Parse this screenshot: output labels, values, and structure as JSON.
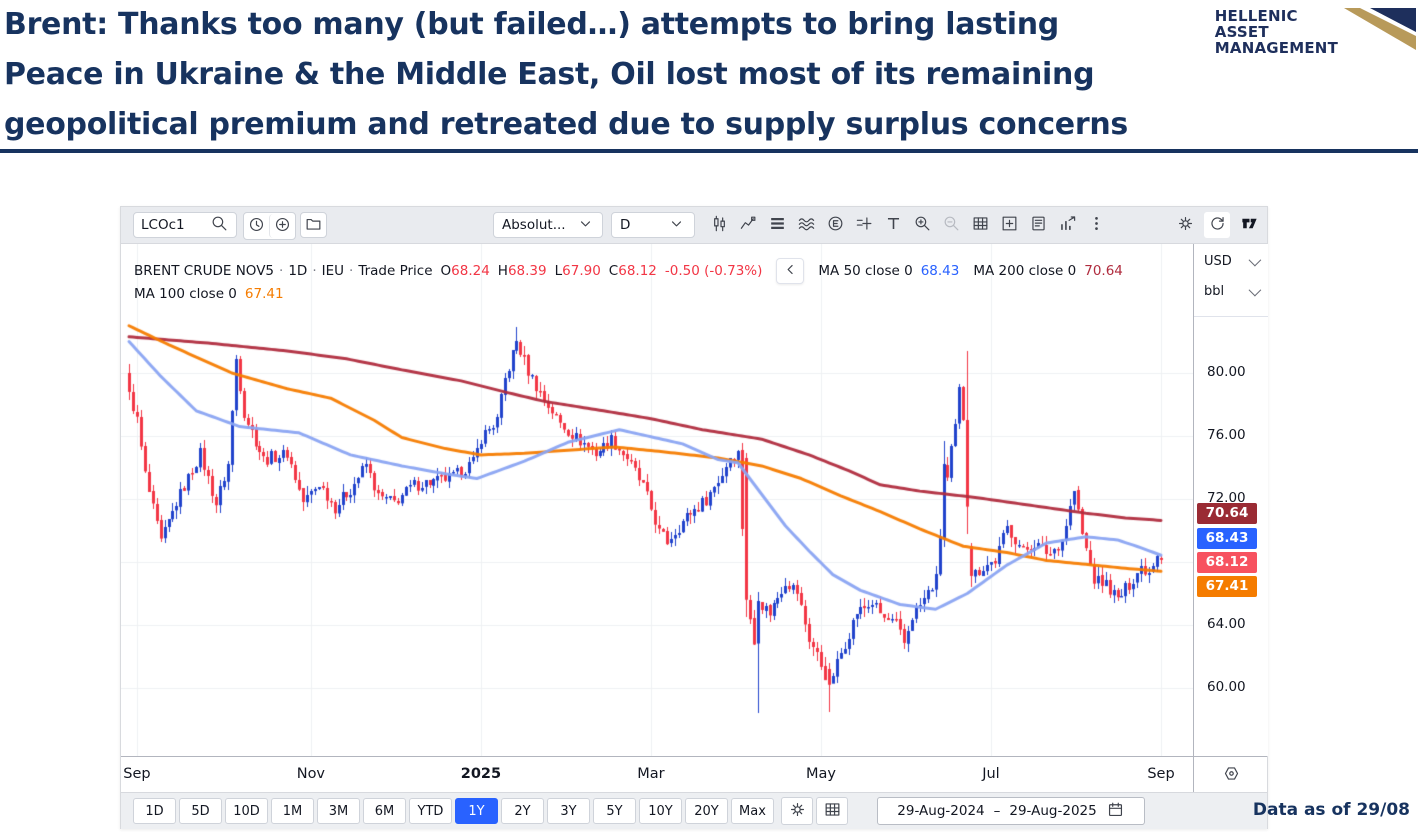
{
  "slide": {
    "title_lines": [
      "Brent: Thanks too many (but failed…) attempts to bring lasting",
      "Peace in Ukraine & the Middle East, Oil lost most of its remaining",
      "geopolitical premium and retreated due to supply surplus concerns"
    ],
    "footer_note": "Data as of 29/08",
    "accent_color": "#17335f",
    "logo": {
      "lines": [
        "HELLENIC",
        "ASSET",
        "MANAGEMENT"
      ],
      "gold": "#b89a5a",
      "navy": "#1e2f5c"
    }
  },
  "tv": {
    "toolbar": {
      "symbol": "LCOc1",
      "style_dropdown": "Absolut...",
      "interval_dropdown": "D",
      "icon_strip": [
        "candles-icon",
        "indicators-icon",
        "rows-icon",
        "waves-icon",
        "circle-e-icon",
        "alert-plus-icon",
        "text-icon",
        "zoom-in-icon",
        "zoom-out-icon",
        "grid-icon",
        "add-panel-icon",
        "news-icon",
        "chart-arrow-icon",
        "dots-icon"
      ],
      "right_icons": [
        "gear-icon",
        "reset-icon",
        "tv-logo-icon"
      ]
    },
    "legend": {
      "symbol_title": "BRENT CRUDE NOV5",
      "sep": "·",
      "interval": "1D",
      "exchange": "IEU",
      "series_type": "Trade Price",
      "o_label": "O",
      "o": "68.24",
      "h_label": "H",
      "h": "68.39",
      "l_label": "L",
      "l": "67.90",
      "c_label": "C",
      "c": "68.12",
      "change": "-0.50 (-0.73%)",
      "ma50_label": "MA 50 close 0",
      "ma50_value": "68.43",
      "ma200_label": "MA 200 close 0",
      "ma200_value": "70.64",
      "ma100_label": "MA 100 close 0",
      "ma100_value": "67.41"
    },
    "axis": {
      "currency": "USD",
      "unit": "bbl",
      "badges": [
        {
          "value": "70.64",
          "color": "#9a2b34"
        },
        {
          "value": "68.43",
          "color": "#2962ff"
        },
        {
          "value": "68.12",
          "color": "#f7525f"
        },
        {
          "value": "67.41",
          "color": "#f57c00"
        }
      ]
    },
    "footer": {
      "ranges": [
        "1D",
        "5D",
        "10D",
        "1M",
        "3M",
        "6M",
        "YTD",
        "1Y",
        "2Y",
        "3Y",
        "5Y",
        "10Y",
        "20Y",
        "Max"
      ],
      "selected": "1Y",
      "date_from": "29-Aug-2024",
      "date_sep": "–",
      "date_to": "29-Aug-2025"
    }
  },
  "chart_data": {
    "type": "candlestick",
    "title": "BRENT CRUDE NOV5 · 1D · IEU · Trade Price (LCOc1), 29-Aug-2024 to 29-Aug-2025",
    "ylabel": "USD/bbl",
    "ylim": [
      57,
      84
    ],
    "grid": true,
    "n_bars": 262,
    "last_bar": {
      "open": 68.24,
      "high": 68.39,
      "low": 67.9,
      "close": 68.12,
      "change": -0.5,
      "change_pct": -0.73
    },
    "y_ticks": [
      {
        "v": 80,
        "label": "80.00"
      },
      {
        "v": 76,
        "label": "76.00"
      },
      {
        "v": 72,
        "label": "72.00"
      },
      {
        "v": 64,
        "label": "64.00"
      },
      {
        "v": 60,
        "label": "60.00"
      }
    ],
    "grid_y": [
      80,
      76,
      72,
      68,
      64,
      60
    ],
    "x_ticks": [
      {
        "i": 2,
        "label": "Sep",
        "bold": false
      },
      {
        "i": 46,
        "label": "Nov",
        "bold": false
      },
      {
        "i": 89,
        "label": "2025",
        "bold": true
      },
      {
        "i": 132,
        "label": "Mar",
        "bold": false
      },
      {
        "i": 175,
        "label": "May",
        "bold": false
      },
      {
        "i": 218,
        "label": "Jul",
        "bold": false
      },
      {
        "i": 261,
        "label": "Sep",
        "bold": false
      }
    ],
    "up_color": "#2143cc",
    "down_color": "#f23645",
    "close_anchors": [
      [
        0,
        78.8
      ],
      [
        2,
        77.0
      ],
      [
        4,
        73.5
      ],
      [
        8,
        69.2
      ],
      [
        12,
        71.8
      ],
      [
        18,
        74.9
      ],
      [
        22,
        71.7
      ],
      [
        25,
        74.2
      ],
      [
        27,
        80.9
      ],
      [
        29,
        77.5
      ],
      [
        34,
        74.5
      ],
      [
        40,
        74.9
      ],
      [
        44,
        71.8
      ],
      [
        48,
        73.0
      ],
      [
        52,
        71.5
      ],
      [
        56,
        72.6
      ],
      [
        60,
        74.2
      ],
      [
        63,
        72.1
      ],
      [
        67,
        71.8
      ],
      [
        72,
        72.9
      ],
      [
        77,
        73.1
      ],
      [
        82,
        73.4
      ],
      [
        87,
        74.3
      ],
      [
        89,
        75.9
      ],
      [
        93,
        77.0
      ],
      [
        95,
        79.6
      ],
      [
        98,
        82.0
      ],
      [
        101,
        80.1
      ],
      [
        105,
        78.3
      ],
      [
        109,
        76.8
      ],
      [
        113,
        75.9
      ],
      [
        118,
        74.9
      ],
      [
        122,
        75.8
      ],
      [
        126,
        74.6
      ],
      [
        130,
        72.8
      ],
      [
        134,
        69.9
      ],
      [
        136,
        69.3
      ],
      [
        141,
        70.9
      ],
      [
        146,
        72.0
      ],
      [
        150,
        73.6
      ],
      [
        152,
        74.7
      ],
      [
        154,
        74.9
      ],
      [
        156,
        65.6
      ],
      [
        158,
        62.8
      ],
      [
        159,
        65.5
      ],
      [
        162,
        64.8
      ],
      [
        166,
        66.8
      ],
      [
        169,
        66.1
      ],
      [
        172,
        63.1
      ],
      [
        174,
        62.1
      ],
      [
        177,
        60.2
      ],
      [
        180,
        62.2
      ],
      [
        184,
        64.8
      ],
      [
        188,
        65.4
      ],
      [
        191,
        64.4
      ],
      [
        194,
        64.0
      ],
      [
        196,
        62.8
      ],
      [
        198,
        64.6
      ],
      [
        201,
        65.6
      ],
      [
        204,
        66.9
      ],
      [
        205,
        69.8
      ],
      [
        206,
        74.2
      ],
      [
        207,
        73.2
      ],
      [
        208,
        75.0
      ],
      [
        209,
        76.5
      ],
      [
        210,
        78.85
      ],
      [
        211,
        77.2
      ],
      [
        212,
        71.5
      ],
      [
        213,
        67.1
      ],
      [
        216,
        67.7
      ],
      [
        219,
        68.1
      ],
      [
        222,
        70.2
      ],
      [
        226,
        68.7
      ],
      [
        229,
        69.2
      ],
      [
        233,
        68.5
      ],
      [
        236,
        69.4
      ],
      [
        239,
        72.5
      ],
      [
        241,
        69.7
      ],
      [
        244,
        66.9
      ],
      [
        247,
        66.6
      ],
      [
        250,
        65.6
      ],
      [
        253,
        66.6
      ],
      [
        256,
        67.7
      ],
      [
        258,
        67.4
      ],
      [
        260,
        68.6
      ],
      [
        261,
        68.12
      ]
    ],
    "overrides": [
      {
        "i": 0,
        "o": 80.0,
        "h": 80.6,
        "l": 78.3,
        "c": 78.8
      },
      {
        "i": 27,
        "h": 81.15
      },
      {
        "i": 95,
        "h": 80.0
      },
      {
        "i": 98,
        "h": 82.9
      },
      {
        "i": 156,
        "o": 74.6,
        "h": 74.9,
        "l": 64.5,
        "c": 65.6
      },
      {
        "i": 159,
        "o": 62.8,
        "h": 66.1,
        "l": 58.4,
        "c": 65.5
      },
      {
        "i": 177,
        "o": 61.2,
        "h": 61.6,
        "l": 58.5,
        "c": 60.2
      },
      {
        "i": 206,
        "o": 69.4,
        "h": 75.7,
        "l": 69.0,
        "c": 74.2
      },
      {
        "i": 212,
        "o": 77.0,
        "h": 81.4,
        "l": 69.8,
        "c": 71.5
      },
      {
        "i": 213,
        "o": 69.0,
        "h": 69.2,
        "l": 66.4,
        "c": 67.1
      },
      {
        "i": 261,
        "o": 68.24,
        "h": 68.39,
        "l": 67.9,
        "c": 68.12
      }
    ],
    "series": [
      {
        "name": "MA 50",
        "last": 68.43,
        "color": "#8aa4f2",
        "anchors": [
          [
            0,
            82.0
          ],
          [
            8,
            79.8
          ],
          [
            17,
            77.6
          ],
          [
            28,
            76.6
          ],
          [
            43,
            76.2
          ],
          [
            56,
            74.8
          ],
          [
            69,
            74.1
          ],
          [
            80,
            73.6
          ],
          [
            88,
            73.3
          ],
          [
            100,
            74.4
          ],
          [
            111,
            75.6
          ],
          [
            124,
            76.4
          ],
          [
            140,
            75.5
          ],
          [
            149,
            74.5
          ],
          [
            154,
            74.3
          ],
          [
            160,
            72.3
          ],
          [
            166,
            70.3
          ],
          [
            172,
            68.7
          ],
          [
            178,
            67.2
          ],
          [
            185,
            66.2
          ],
          [
            195,
            65.3
          ],
          [
            204,
            65.0
          ],
          [
            212,
            66.0
          ],
          [
            222,
            67.8
          ],
          [
            232,
            69.2
          ],
          [
            242,
            69.6
          ],
          [
            250,
            69.4
          ],
          [
            256,
            68.9
          ],
          [
            261,
            68.43
          ]
        ]
      },
      {
        "name": "MA 100",
        "last": 67.41,
        "color": "#f57c00",
        "anchors": [
          [
            0,
            83.0
          ],
          [
            10,
            81.8
          ],
          [
            26,
            80.0
          ],
          [
            40,
            79.0
          ],
          [
            51,
            78.4
          ],
          [
            62,
            77.0
          ],
          [
            69,
            75.9
          ],
          [
            80,
            75.2
          ],
          [
            89,
            74.8
          ],
          [
            100,
            74.9
          ],
          [
            111,
            75.1
          ],
          [
            123,
            75.3
          ],
          [
            135,
            75.0
          ],
          [
            149,
            74.6
          ],
          [
            160,
            74.1
          ],
          [
            170,
            73.3
          ],
          [
            180,
            72.2
          ],
          [
            190,
            71.2
          ],
          [
            200,
            70.1
          ],
          [
            211,
            69.0
          ],
          [
            222,
            68.6
          ],
          [
            232,
            68.1
          ],
          [
            240,
            67.9
          ],
          [
            252,
            67.6
          ],
          [
            261,
            67.41
          ]
        ]
      },
      {
        "name": "MA 200",
        "last": 70.64,
        "color": "#b02c3e",
        "anchors": [
          [
            0,
            82.3
          ],
          [
            20,
            81.9
          ],
          [
            40,
            81.4
          ],
          [
            55,
            80.9
          ],
          [
            69,
            80.2
          ],
          [
            84,
            79.5
          ],
          [
            95,
            78.8
          ],
          [
            105,
            78.2
          ],
          [
            120,
            77.6
          ],
          [
            132,
            77.1
          ],
          [
            145,
            76.4
          ],
          [
            160,
            75.8
          ],
          [
            172,
            74.8
          ],
          [
            182,
            73.8
          ],
          [
            190,
            72.9
          ],
          [
            200,
            72.5
          ],
          [
            214,
            72.1
          ],
          [
            228,
            71.6
          ],
          [
            242,
            71.1
          ],
          [
            252,
            70.8
          ],
          [
            261,
            70.64
          ]
        ]
      }
    ]
  }
}
